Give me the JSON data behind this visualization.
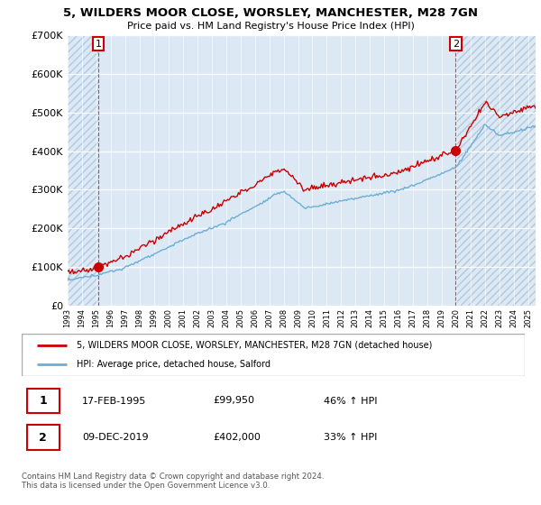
{
  "title": "5, WILDERS MOOR CLOSE, WORSLEY, MANCHESTER, M28 7GN",
  "subtitle": "Price paid vs. HM Land Registry's House Price Index (HPI)",
  "legend_line1": "5, WILDERS MOOR CLOSE, WORSLEY, MANCHESTER, M28 7GN (detached house)",
  "legend_line2": "HPI: Average price, detached house, Salford",
  "annotation1_date": "17-FEB-1995",
  "annotation1_price": "£99,950",
  "annotation1_hpi": "46% ↑ HPI",
  "annotation2_date": "09-DEC-2019",
  "annotation2_price": "£402,000",
  "annotation2_hpi": "33% ↑ HPI",
  "footnote": "Contains HM Land Registry data © Crown copyright and database right 2024.\nThis data is licensed under the Open Government Licence v3.0.",
  "hpi_color": "#6baed6",
  "price_color": "#cc0000",
  "ylim": [
    0,
    700000
  ],
  "yticks": [
    0,
    100000,
    200000,
    300000,
    400000,
    500000,
    600000,
    700000
  ],
  "t1": 1995.13,
  "t2": 2019.94,
  "price1": 99950,
  "price2": 402000,
  "xmin": 1993,
  "xmax": 2025.5
}
